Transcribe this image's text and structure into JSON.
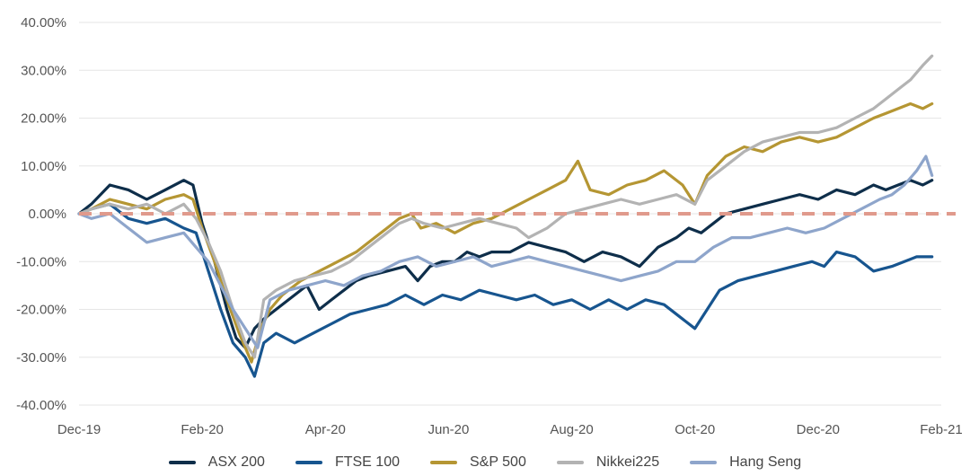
{
  "chart_data": {
    "type": "line",
    "title": "",
    "xlabel": "",
    "ylabel": "",
    "ylim": [
      -40,
      40
    ],
    "ytick_step": 10,
    "ytick_labels": [
      "40.00%",
      "30.00%",
      "20.00%",
      "10.00%",
      "0.00%",
      "-10.00%",
      "-20.00%",
      "-30.00%",
      "-40.00%"
    ],
    "x_range": [
      0,
      14
    ],
    "xtick_labels": [
      {
        "x": 0,
        "label": "Dec-19"
      },
      {
        "x": 2,
        "label": "Feb-20"
      },
      {
        "x": 4,
        "label": "Apr-20"
      },
      {
        "x": 6,
        "label": "Jun-20"
      },
      {
        "x": 8,
        "label": "Aug-20"
      },
      {
        "x": 10,
        "label": "Oct-20"
      },
      {
        "x": 12,
        "label": "Dec-20"
      },
      {
        "x": 14,
        "label": "Feb-21"
      }
    ],
    "reference_line": {
      "y": 0,
      "color": "#E09A8C",
      "style": "dashed"
    },
    "legend_position": "bottom",
    "series": [
      {
        "name": "ASX 200",
        "color": "#0E2E4A",
        "points": [
          [
            0.0,
            0
          ],
          [
            0.2,
            2
          ],
          [
            0.5,
            6
          ],
          [
            0.8,
            5
          ],
          [
            1.1,
            3
          ],
          [
            1.4,
            5
          ],
          [
            1.7,
            7
          ],
          [
            1.85,
            6
          ],
          [
            2.0,
            -2
          ],
          [
            2.2,
            -10
          ],
          [
            2.4,
            -20
          ],
          [
            2.55,
            -26
          ],
          [
            2.7,
            -28
          ],
          [
            2.85,
            -24
          ],
          [
            3.0,
            -22
          ],
          [
            3.2,
            -20
          ],
          [
            3.5,
            -17
          ],
          [
            3.7,
            -15
          ],
          [
            3.9,
            -20
          ],
          [
            4.1,
            -18
          ],
          [
            4.3,
            -16
          ],
          [
            4.5,
            -14
          ],
          [
            4.7,
            -13
          ],
          [
            5.0,
            -12
          ],
          [
            5.3,
            -11
          ],
          [
            5.5,
            -14
          ],
          [
            5.7,
            -11
          ],
          [
            5.9,
            -10
          ],
          [
            6.1,
            -10
          ],
          [
            6.3,
            -8
          ],
          [
            6.5,
            -9
          ],
          [
            6.7,
            -8
          ],
          [
            7.0,
            -8
          ],
          [
            7.3,
            -6
          ],
          [
            7.6,
            -7
          ],
          [
            7.9,
            -8
          ],
          [
            8.2,
            -10
          ],
          [
            8.5,
            -8
          ],
          [
            8.8,
            -9
          ],
          [
            9.1,
            -11
          ],
          [
            9.4,
            -7
          ],
          [
            9.7,
            -5
          ],
          [
            9.9,
            -3
          ],
          [
            10.1,
            -4
          ],
          [
            10.3,
            -2
          ],
          [
            10.5,
            0
          ],
          [
            10.8,
            1
          ],
          [
            11.1,
            2
          ],
          [
            11.4,
            3
          ],
          [
            11.7,
            4
          ],
          [
            12.0,
            3
          ],
          [
            12.3,
            5
          ],
          [
            12.6,
            4
          ],
          [
            12.9,
            6
          ],
          [
            13.1,
            5
          ],
          [
            13.3,
            6
          ],
          [
            13.5,
            7
          ],
          [
            13.7,
            6
          ],
          [
            13.85,
            7
          ]
        ]
      },
      {
        "name": "FTSE 100",
        "color": "#17558F",
        "points": [
          [
            0.0,
            0
          ],
          [
            0.2,
            1
          ],
          [
            0.5,
            2
          ],
          [
            0.8,
            -1
          ],
          [
            1.1,
            -2
          ],
          [
            1.4,
            -1
          ],
          [
            1.7,
            -3
          ],
          [
            1.9,
            -4
          ],
          [
            2.1,
            -12
          ],
          [
            2.3,
            -20
          ],
          [
            2.5,
            -27
          ],
          [
            2.7,
            -30
          ],
          [
            2.85,
            -34
          ],
          [
            3.0,
            -27
          ],
          [
            3.2,
            -25
          ],
          [
            3.5,
            -27
          ],
          [
            3.8,
            -25
          ],
          [
            4.1,
            -23
          ],
          [
            4.4,
            -21
          ],
          [
            4.7,
            -20
          ],
          [
            5.0,
            -19
          ],
          [
            5.3,
            -17
          ],
          [
            5.6,
            -19
          ],
          [
            5.9,
            -17
          ],
          [
            6.2,
            -18
          ],
          [
            6.5,
            -16
          ],
          [
            6.8,
            -17
          ],
          [
            7.1,
            -18
          ],
          [
            7.4,
            -17
          ],
          [
            7.7,
            -19
          ],
          [
            8.0,
            -18
          ],
          [
            8.3,
            -20
          ],
          [
            8.6,
            -18
          ],
          [
            8.9,
            -20
          ],
          [
            9.2,
            -18
          ],
          [
            9.5,
            -19
          ],
          [
            9.8,
            -22
          ],
          [
            10.0,
            -24
          ],
          [
            10.2,
            -20
          ],
          [
            10.4,
            -16
          ],
          [
            10.7,
            -14
          ],
          [
            11.0,
            -13
          ],
          [
            11.3,
            -12
          ],
          [
            11.6,
            -11
          ],
          [
            11.9,
            -10
          ],
          [
            12.1,
            -11
          ],
          [
            12.3,
            -8
          ],
          [
            12.6,
            -9
          ],
          [
            12.9,
            -12
          ],
          [
            13.2,
            -11
          ],
          [
            13.4,
            -10
          ],
          [
            13.6,
            -9
          ],
          [
            13.85,
            -9
          ]
        ]
      },
      {
        "name": "S&P 500",
        "color": "#B59633",
        "points": [
          [
            0.0,
            0
          ],
          [
            0.2,
            1
          ],
          [
            0.5,
            3
          ],
          [
            0.8,
            2
          ],
          [
            1.1,
            1
          ],
          [
            1.4,
            3
          ],
          [
            1.7,
            4
          ],
          [
            1.85,
            3
          ],
          [
            2.0,
            -3
          ],
          [
            2.2,
            -10
          ],
          [
            2.4,
            -18
          ],
          [
            2.6,
            -25
          ],
          [
            2.8,
            -31
          ],
          [
            2.95,
            -24
          ],
          [
            3.1,
            -20
          ],
          [
            3.3,
            -17
          ],
          [
            3.6,
            -14
          ],
          [
            3.9,
            -12
          ],
          [
            4.2,
            -10
          ],
          [
            4.5,
            -8
          ],
          [
            4.8,
            -5
          ],
          [
            5.0,
            -3
          ],
          [
            5.2,
            -1
          ],
          [
            5.4,
            0
          ],
          [
            5.55,
            -3
          ],
          [
            5.8,
            -2
          ],
          [
            6.1,
            -4
          ],
          [
            6.4,
            -2
          ],
          [
            6.7,
            -1
          ],
          [
            7.0,
            1
          ],
          [
            7.3,
            3
          ],
          [
            7.6,
            5
          ],
          [
            7.9,
            7
          ],
          [
            8.1,
            11
          ],
          [
            8.3,
            5
          ],
          [
            8.6,
            4
          ],
          [
            8.9,
            6
          ],
          [
            9.2,
            7
          ],
          [
            9.5,
            9
          ],
          [
            9.8,
            6
          ],
          [
            10.0,
            2
          ],
          [
            10.2,
            8
          ],
          [
            10.5,
            12
          ],
          [
            10.8,
            14
          ],
          [
            11.1,
            13
          ],
          [
            11.4,
            15
          ],
          [
            11.7,
            16
          ],
          [
            12.0,
            15
          ],
          [
            12.3,
            16
          ],
          [
            12.6,
            18
          ],
          [
            12.9,
            20
          ],
          [
            13.1,
            21
          ],
          [
            13.3,
            22
          ],
          [
            13.5,
            23
          ],
          [
            13.7,
            22
          ],
          [
            13.85,
            23
          ]
        ]
      },
      {
        "name": "Nikkei225",
        "color": "#B3B3B3",
        "points": [
          [
            0.0,
            0
          ],
          [
            0.2,
            1
          ],
          [
            0.5,
            2
          ],
          [
            0.8,
            1
          ],
          [
            1.1,
            2
          ],
          [
            1.4,
            0
          ],
          [
            1.7,
            2
          ],
          [
            1.9,
            -1
          ],
          [
            2.1,
            -6
          ],
          [
            2.3,
            -12
          ],
          [
            2.5,
            -20
          ],
          [
            2.7,
            -27
          ],
          [
            2.85,
            -30
          ],
          [
            3.0,
            -18
          ],
          [
            3.2,
            -16
          ],
          [
            3.5,
            -14
          ],
          [
            3.8,
            -13
          ],
          [
            4.1,
            -12
          ],
          [
            4.4,
            -10
          ],
          [
            4.7,
            -7
          ],
          [
            5.0,
            -4
          ],
          [
            5.2,
            -2
          ],
          [
            5.4,
            -1
          ],
          [
            5.6,
            -2
          ],
          [
            5.9,
            -3
          ],
          [
            6.2,
            -2
          ],
          [
            6.5,
            -1
          ],
          [
            6.8,
            -2
          ],
          [
            7.1,
            -3
          ],
          [
            7.3,
            -5
          ],
          [
            7.6,
            -3
          ],
          [
            7.9,
            0
          ],
          [
            8.2,
            1
          ],
          [
            8.5,
            2
          ],
          [
            8.8,
            3
          ],
          [
            9.1,
            2
          ],
          [
            9.4,
            3
          ],
          [
            9.7,
            4
          ],
          [
            10.0,
            2
          ],
          [
            10.2,
            7
          ],
          [
            10.5,
            10
          ],
          [
            10.8,
            13
          ],
          [
            11.1,
            15
          ],
          [
            11.4,
            16
          ],
          [
            11.7,
            17
          ],
          [
            12.0,
            17
          ],
          [
            12.3,
            18
          ],
          [
            12.6,
            20
          ],
          [
            12.9,
            22
          ],
          [
            13.1,
            24
          ],
          [
            13.3,
            26
          ],
          [
            13.5,
            28
          ],
          [
            13.7,
            31
          ],
          [
            13.85,
            33
          ]
        ]
      },
      {
        "name": "Hang Seng",
        "color": "#8EA5CB",
        "points": [
          [
            0.0,
            0
          ],
          [
            0.2,
            -1
          ],
          [
            0.5,
            0
          ],
          [
            0.8,
            -3
          ],
          [
            1.1,
            -6
          ],
          [
            1.4,
            -5
          ],
          [
            1.7,
            -4
          ],
          [
            1.9,
            -7
          ],
          [
            2.1,
            -10
          ],
          [
            2.3,
            -15
          ],
          [
            2.5,
            -20
          ],
          [
            2.7,
            -24
          ],
          [
            2.9,
            -28
          ],
          [
            3.1,
            -18
          ],
          [
            3.4,
            -16
          ],
          [
            3.7,
            -15
          ],
          [
            4.0,
            -14
          ],
          [
            4.3,
            -15
          ],
          [
            4.6,
            -13
          ],
          [
            4.9,
            -12
          ],
          [
            5.2,
            -10
          ],
          [
            5.5,
            -9
          ],
          [
            5.8,
            -11
          ],
          [
            6.1,
            -10
          ],
          [
            6.4,
            -9
          ],
          [
            6.7,
            -11
          ],
          [
            7.0,
            -10
          ],
          [
            7.3,
            -9
          ],
          [
            7.6,
            -10
          ],
          [
            7.9,
            -11
          ],
          [
            8.2,
            -12
          ],
          [
            8.5,
            -13
          ],
          [
            8.8,
            -14
          ],
          [
            9.1,
            -13
          ],
          [
            9.4,
            -12
          ],
          [
            9.7,
            -10
          ],
          [
            10.0,
            -10
          ],
          [
            10.3,
            -7
          ],
          [
            10.6,
            -5
          ],
          [
            10.9,
            -5
          ],
          [
            11.2,
            -4
          ],
          [
            11.5,
            -3
          ],
          [
            11.8,
            -4
          ],
          [
            12.1,
            -3
          ],
          [
            12.4,
            -1
          ],
          [
            12.7,
            1
          ],
          [
            13.0,
            3
          ],
          [
            13.2,
            4
          ],
          [
            13.4,
            6
          ],
          [
            13.6,
            9
          ],
          [
            13.75,
            12
          ],
          [
            13.85,
            8
          ]
        ]
      }
    ]
  }
}
